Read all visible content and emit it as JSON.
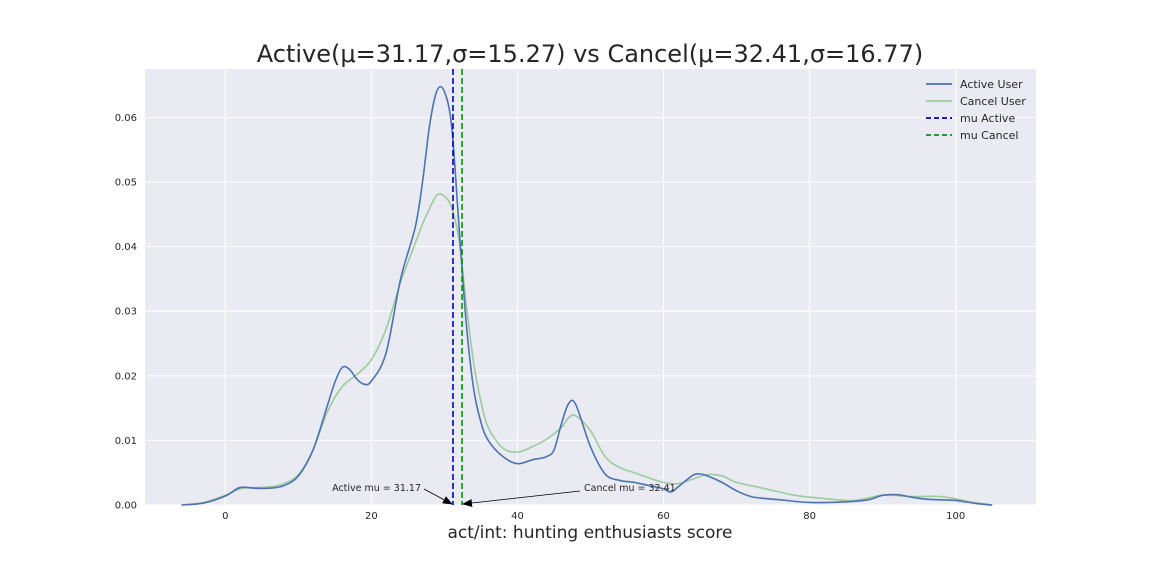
{
  "chart_data": {
    "type": "line",
    "title": "Active(μ=31.17,σ=15.27) vs Cancel(μ=32.41,σ=16.77)",
    "xlabel": "act/int: hunting enthusiasts score",
    "ylabel": "",
    "xlim": [
      -11,
      111
    ],
    "ylim": [
      0,
      0.0675
    ],
    "x_ticks": [
      "0",
      "20",
      "40",
      "60",
      "80",
      "100"
    ],
    "y_ticks": [
      "0.00",
      "0.01",
      "0.02",
      "0.03",
      "0.04",
      "0.05",
      "0.06"
    ],
    "grid": true,
    "background": "#eaeaf2",
    "legend_position": "top-right",
    "series": [
      {
        "name": "Active User",
        "color": "#4c72b0",
        "x": [
          -6,
          -3,
          0,
          2,
          4,
          6,
          8,
          10,
          12,
          14,
          15,
          16,
          17,
          18,
          19,
          20,
          22,
          24,
          26,
          27,
          28,
          29,
          30,
          31,
          32,
          33,
          34,
          35,
          36,
          38,
          40,
          42,
          43,
          44,
          45,
          46,
          47,
          48,
          50,
          52,
          54,
          56,
          58,
          60,
          61,
          62,
          64,
          65,
          66,
          68,
          70,
          72,
          74,
          76,
          80,
          85,
          88,
          90,
          92,
          94,
          96,
          98,
          100,
          103,
          105
        ],
        "y": [
          0,
          0.0003,
          0.0014,
          0.0027,
          0.0026,
          0.0026,
          0.003,
          0.0045,
          0.0085,
          0.0155,
          0.019,
          0.0213,
          0.021,
          0.0195,
          0.0187,
          0.0192,
          0.0235,
          0.035,
          0.043,
          0.05,
          0.059,
          0.0642,
          0.064,
          0.0585,
          0.043,
          0.028,
          0.018,
          0.0128,
          0.01,
          0.0075,
          0.0064,
          0.007,
          0.0072,
          0.0075,
          0.0085,
          0.0125,
          0.0157,
          0.0155,
          0.009,
          0.0048,
          0.0038,
          0.0035,
          0.003,
          0.0025,
          0.002,
          0.0028,
          0.0046,
          0.0048,
          0.0045,
          0.0035,
          0.0022,
          0.0013,
          0.001,
          0.0008,
          0.0004,
          0.0005,
          0.0008,
          0.0015,
          0.0016,
          0.0012,
          0.0009,
          0.0008,
          0.0007,
          0.0002,
          0
        ]
      },
      {
        "name": "Cancel User",
        "color": "#9ccb9c",
        "x": [
          -6,
          -3,
          0,
          2,
          4,
          6,
          8,
          10,
          12,
          14,
          16,
          18,
          20,
          22,
          24,
          26,
          27,
          28,
          29,
          30,
          31,
          32,
          33,
          34,
          35,
          36,
          38,
          40,
          42,
          44,
          46,
          47,
          48,
          50,
          52,
          54,
          56,
          58,
          60,
          62,
          64,
          66,
          68,
          70,
          74,
          78,
          82,
          86,
          90,
          94,
          98,
          102,
          105
        ],
        "y": [
          0,
          0.0004,
          0.0015,
          0.0025,
          0.0027,
          0.0028,
          0.0033,
          0.0047,
          0.0085,
          0.0145,
          0.0183,
          0.0202,
          0.0225,
          0.0272,
          0.0345,
          0.0405,
          0.0435,
          0.046,
          0.048,
          0.0478,
          0.046,
          0.041,
          0.031,
          0.022,
          0.016,
          0.012,
          0.0088,
          0.0082,
          0.009,
          0.0102,
          0.012,
          0.0135,
          0.0138,
          0.0115,
          0.0075,
          0.0058,
          0.005,
          0.0042,
          0.0035,
          0.0033,
          0.004,
          0.0047,
          0.0045,
          0.0035,
          0.0025,
          0.0015,
          0.001,
          0.0007,
          0.0015,
          0.0013,
          0.0013,
          0.0005,
          0
        ]
      }
    ],
    "vlines": [
      {
        "name": "mu Active",
        "x": 31.17,
        "color": "#0000cc",
        "style": "dashed"
      },
      {
        "name": "mu Cancel",
        "x": 32.41,
        "color": "#009900",
        "style": "dashed"
      }
    ],
    "annotations": [
      {
        "text": "Active mu = 31.17",
        "x": 31.17,
        "y": 0
      },
      {
        "text": "Cancel mu = 32.41",
        "x": 32.41,
        "y": 0
      }
    ],
    "legend": [
      {
        "label": "Active User",
        "color": "#4c72b0",
        "style": "solid"
      },
      {
        "label": "Cancel User",
        "color": "#9ccb9c",
        "style": "solid"
      },
      {
        "label": "mu Active",
        "color": "#0000cc",
        "style": "dashed"
      },
      {
        "label": "mu Cancel",
        "color": "#009900",
        "style": "dashed"
      }
    ]
  }
}
